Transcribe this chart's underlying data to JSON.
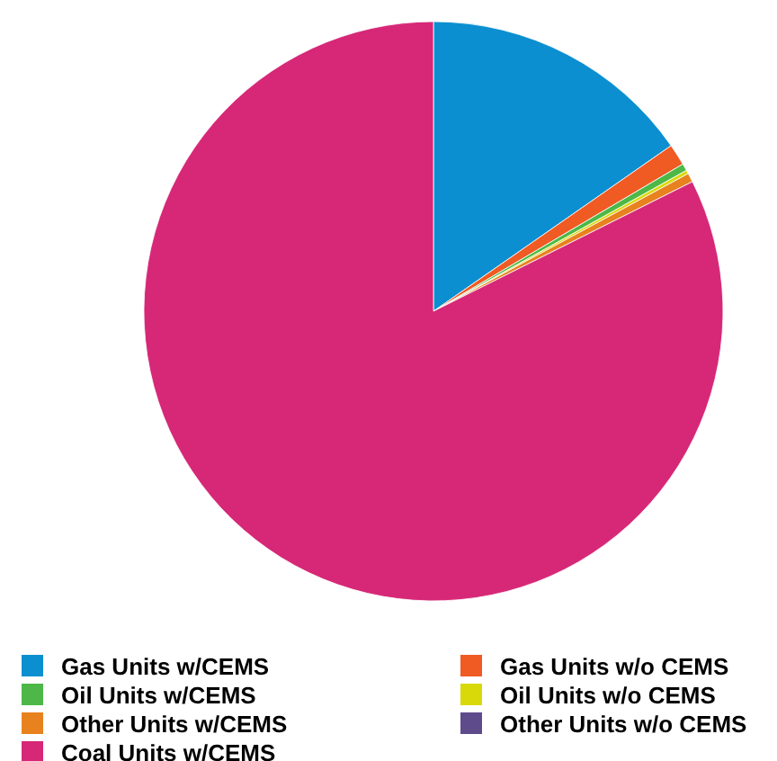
{
  "chart_data": {
    "type": "pie",
    "categories": [
      "Gas Units w/CEMS",
      "Gas Units w/o CEMS",
      "Oil Units w/CEMS",
      "Oil Units w/o CEMS",
      "Other Units w/CEMS",
      "Other Units w/o CEMS",
      "Coal Units w/CEMS"
    ],
    "values": [
      15.3,
      1.2,
      0.4,
      0.2,
      0.5,
      null,
      82.3
    ],
    "colors": [
      "#0b8fd0",
      "#f05a23",
      "#4db848",
      "#d9d90a",
      "#e8821e",
      "#5e4b8b",
      "#d62877"
    ],
    "legend": "bottom"
  }
}
